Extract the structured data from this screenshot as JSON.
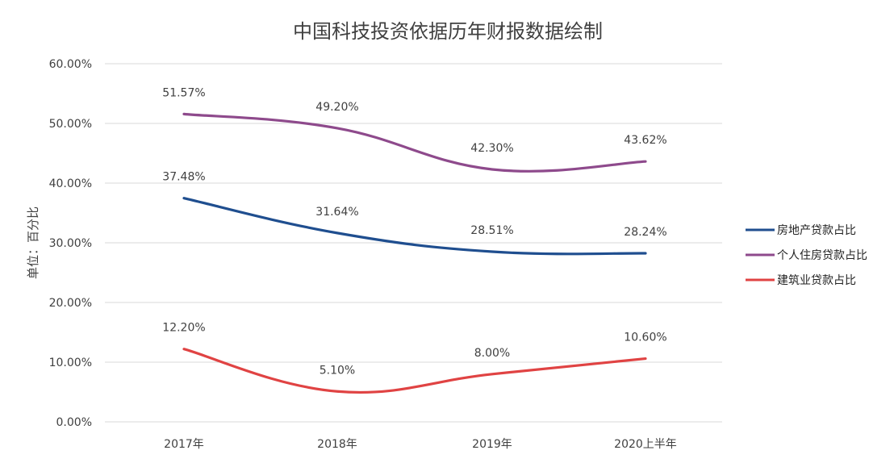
{
  "chart_data": {
    "type": "line",
    "title": "中国科技投资依据历年财报数据绘制",
    "xlabel": "",
    "ylabel": "单位：百分比",
    "categories": [
      "2017年",
      "2018年",
      "2019年",
      "2020上半年"
    ],
    "ylim": [
      0,
      60
    ],
    "yticks": [
      "0.00%",
      "10.00%",
      "20.00%",
      "30.00%",
      "40.00%",
      "50.00%",
      "60.00%"
    ],
    "grid": true,
    "legend_position": "right",
    "smooth": true,
    "series": [
      {
        "name": "房地产贷款占比",
        "color": "#1f4e8f",
        "values": [
          37.48,
          31.64,
          28.51,
          28.24
        ],
        "labels": [
          "37.48%",
          "31.64%",
          "28.51%",
          "28.24%"
        ]
      },
      {
        "name": "个人住房贷款占比",
        "color": "#8e4a8c",
        "values": [
          51.57,
          49.2,
          42.3,
          43.62
        ],
        "labels": [
          "51.57%",
          "49.20%",
          "42.30%",
          "43.62%"
        ]
      },
      {
        "name": "建筑业贷款占比",
        "color": "#e04343",
        "values": [
          12.2,
          5.1,
          8.0,
          10.6
        ],
        "labels": [
          "12.20%",
          "5.10%",
          "8.00%",
          "10.60%"
        ]
      }
    ]
  }
}
